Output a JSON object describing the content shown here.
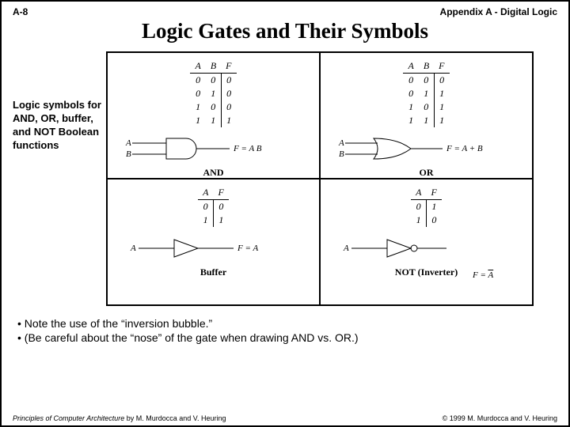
{
  "header": {
    "left": "A-8",
    "right": "Appendix A - Digital Logic"
  },
  "title": "Logic Gates and Their Symbols",
  "sidelabel": "Logic symbols for AND, OR, buffer, and NOT Boolean functions",
  "gates": {
    "and": {
      "name": "AND",
      "headers": [
        "A",
        "B",
        "F"
      ],
      "rows": [
        [
          "0",
          "0",
          "0"
        ],
        [
          "0",
          "1",
          "0"
        ],
        [
          "1",
          "0",
          "0"
        ],
        [
          "1",
          "1",
          "1"
        ]
      ],
      "inputs": [
        "A",
        "B"
      ],
      "outExpr": "F = A B"
    },
    "or": {
      "name": "OR",
      "headers": [
        "A",
        "B",
        "F"
      ],
      "rows": [
        [
          "0",
          "0",
          "0"
        ],
        [
          "0",
          "1",
          "1"
        ],
        [
          "1",
          "0",
          "1"
        ],
        [
          "1",
          "1",
          "1"
        ]
      ],
      "inputs": [
        "A",
        "B"
      ],
      "outExpr": "F = A + B"
    },
    "buf": {
      "name": "Buffer",
      "headers": [
        "A",
        "F"
      ],
      "rows": [
        [
          "0",
          "0"
        ],
        [
          "1",
          "1"
        ]
      ],
      "inputs": [
        "A"
      ],
      "outExpr": "F = A"
    },
    "not": {
      "name": "NOT (Inverter)",
      "headers": [
        "A",
        "F"
      ],
      "rows": [
        [
          "0",
          "1"
        ],
        [
          "1",
          "0"
        ]
      ],
      "inputs": [
        "A"
      ],
      "outExprHTML": "F = <span class=\"ov\">A</span>"
    }
  },
  "notes": [
    "Note the use of the “inversion bubble.”",
    "(Be careful about the “nose” of the gate when drawing AND vs. OR.)"
  ],
  "footer": {
    "leftHTML": "<i>Principles of Computer Architecture</i> by M. Murdocca and V. Heuring",
    "right": "© 1999 M. Murdocca and V. Heuring"
  },
  "colors": {
    "stroke": "#000000",
    "bg": "#ffffff"
  }
}
